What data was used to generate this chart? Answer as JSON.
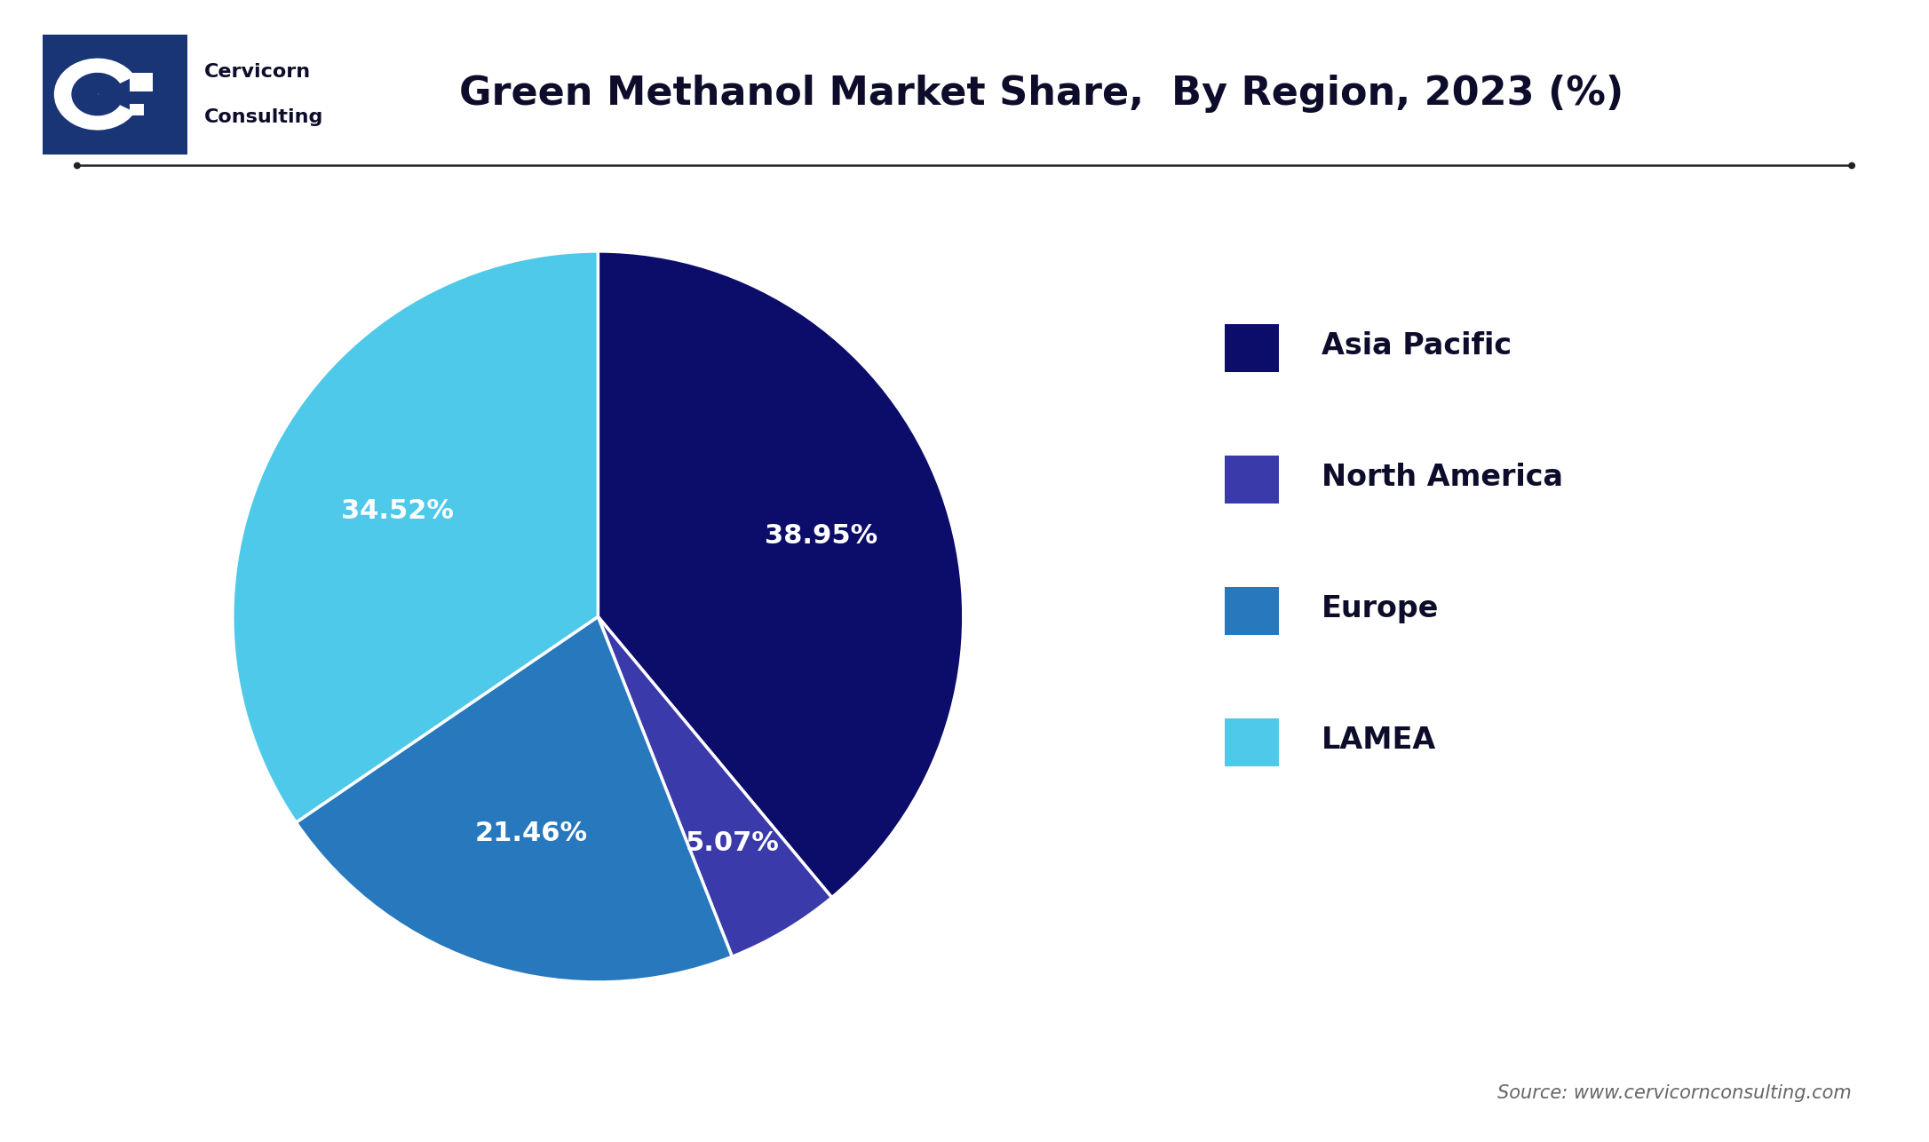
{
  "title": "Green Methanol Market Share,  By Region, 2023 (%)",
  "slices": [
    38.95,
    5.07,
    21.46,
    34.52
  ],
  "slice_labels": [
    "38.95%",
    "5.07%",
    "21.46%",
    "34.52%"
  ],
  "legend_labels": [
    "Asia Pacific",
    "North America",
    "Europe",
    "LAMEA"
  ],
  "colors": [
    "#0c0c6b",
    "#3a3aaa",
    "#2878be",
    "#4ec9ea"
  ],
  "legend_colors": [
    "#0c0c6b",
    "#3a3aaa",
    "#2878be",
    "#4ec9ea"
  ],
  "startangle": 90,
  "counterclock": false,
  "source_text": "Source: www.cervicornconsulting.com",
  "background_color": "#ffffff",
  "title_fontsize": 32,
  "legend_fontsize": 24,
  "autopct_fontsize": 22,
  "source_fontsize": 15,
  "line_color": "#222222",
  "text_color": "#0d0d2b",
  "label_radii": [
    0.65,
    0.72,
    0.62,
    0.62
  ]
}
